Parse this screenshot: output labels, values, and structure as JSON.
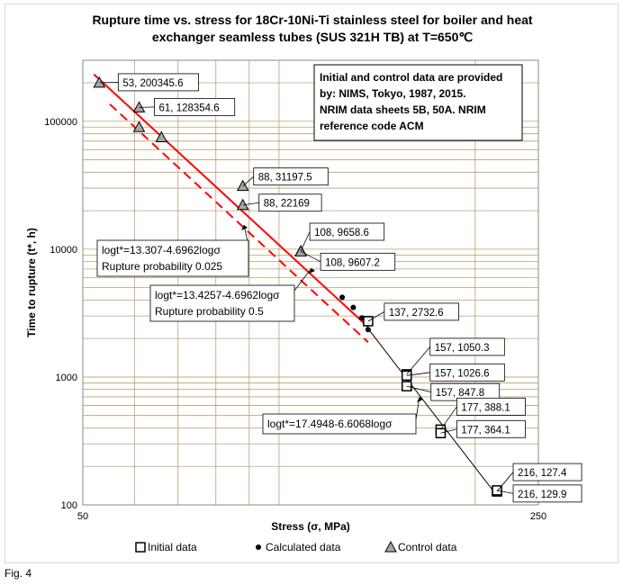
{
  "figure_caption": "Fig. 4",
  "chart_data": {
    "type": "scatter",
    "title": "Rupture time vs. stress for 18Cr-10Ni-Ti stainless steel for boiler and heat exchanger seamless tubes (SUS 321H TB) at T=650°C",
    "title_lines": [
      "Rupture time vs. stress for 18Cr-10Ni-Ti stainless steel for boiler and heat",
      "exchanger seamless tubes (SUS 321H TB) at T=650℃"
    ],
    "xlabel": "Stress (σ, MPa)",
    "ylabel": "Time to rupture (t*, h)",
    "x_scale": "log",
    "y_scale": "log",
    "xlim": [
      50,
      250
    ],
    "ylim": [
      100,
      300000
    ],
    "x_ticks": [
      50,
      250
    ],
    "y_ticks": [
      100,
      1000,
      10000,
      100000
    ],
    "y_tick_labels": [
      "100",
      "1000",
      "10000",
      "100000"
    ],
    "grid": true,
    "info_box": [
      "Initial and control data are provided",
      "by: NIMS, Tokyo, 1987, 2015.",
      "NRIM data sheets 5B, 50A. NRIM",
      "reference code ACM"
    ],
    "legend_position": "bottom",
    "legend": [
      "Initial data",
      "Calculated data",
      "Control data"
    ],
    "series": [
      {
        "name": "Initial data",
        "marker": "square",
        "points": [
          {
            "x": 137,
            "y": 2732.6
          },
          {
            "x": 157,
            "y": 1050.3
          },
          {
            "x": 157,
            "y": 1026.6
          },
          {
            "x": 157,
            "y": 847.8
          },
          {
            "x": 177,
            "y": 388.1
          },
          {
            "x": 177,
            "y": 364.1
          },
          {
            "x": 216,
            "y": 127.4
          },
          {
            "x": 216,
            "y": 129.9
          }
        ]
      },
      {
        "name": "Calculated data",
        "marker": "dot",
        "points": [
          {
            "x": 125,
            "y": 4200
          },
          {
            "x": 130,
            "y": 3500
          },
          {
            "x": 134,
            "y": 2900
          },
          {
            "x": 137,
            "y": 2350
          }
        ]
      },
      {
        "name": "Control data",
        "marker": "triangle",
        "points": [
          {
            "x": 53,
            "y": 200345.6
          },
          {
            "x": 61,
            "y": 128354.6
          },
          {
            "x": 61,
            "y": 90000
          },
          {
            "x": 66,
            "y": 75000
          },
          {
            "x": 88,
            "y": 31197.5
          },
          {
            "x": 88,
            "y": 22169
          },
          {
            "x": 108,
            "y": 9658.6
          },
          {
            "x": 108,
            "y": 9607.2
          }
        ]
      }
    ],
    "fit_lines": [
      {
        "label": "logt*=13.307-4.6962logσ",
        "sublabel": "Rupture probability 0.025",
        "intercept": 13.307,
        "slope": -4.6962,
        "x_range": [
          55,
          137
        ],
        "color": "#ff0000",
        "dashed": true
      },
      {
        "label": "logt*=13.4257-4.6962logσ",
        "sublabel": "Rupture probability 0.5",
        "intercept": 13.4257,
        "slope": -4.6962,
        "x_range": [
          52,
          137
        ],
        "color": "#ff0000",
        "dashed": false
      },
      {
        "label": "logt*=17.4948-6.6068logσ",
        "sublabel": "",
        "intercept": 17.4948,
        "slope": -6.6068,
        "x_range": [
          137,
          216
        ],
        "color": "#000000",
        "dashed": false
      }
    ],
    "data_labels": [
      {
        "text": "53, 200345.6",
        "x": 53,
        "y": 200345.6
      },
      {
        "text": "61, 128354.6",
        "x": 61,
        "y": 128354.6
      },
      {
        "text": "88, 31197.5",
        "x": 88,
        "y": 31197.5
      },
      {
        "text": "88, 22169",
        "x": 88,
        "y": 22169
      },
      {
        "text": "108, 9658.6",
        "x": 108,
        "y": 9658.6
      },
      {
        "text": "108, 9607.2",
        "x": 108,
        "y": 9607.2
      },
      {
        "text": "137, 2732.6",
        "x": 137,
        "y": 2732.6
      },
      {
        "text": "157, 1050.3",
        "x": 157,
        "y": 1050.3
      },
      {
        "text": "157, 1026.6",
        "x": 157,
        "y": 1026.6
      },
      {
        "text": "157, 847.8",
        "x": 157,
        "y": 847.8
      },
      {
        "text": "177, 388.1",
        "x": 177,
        "y": 388.1
      },
      {
        "text": "177, 364.1",
        "x": 177,
        "y": 364.1
      },
      {
        "text": "216, 127.4",
        "x": 216,
        "y": 127.4
      },
      {
        "text": "216, 129.9",
        "x": 216,
        "y": 129.9
      }
    ]
  }
}
